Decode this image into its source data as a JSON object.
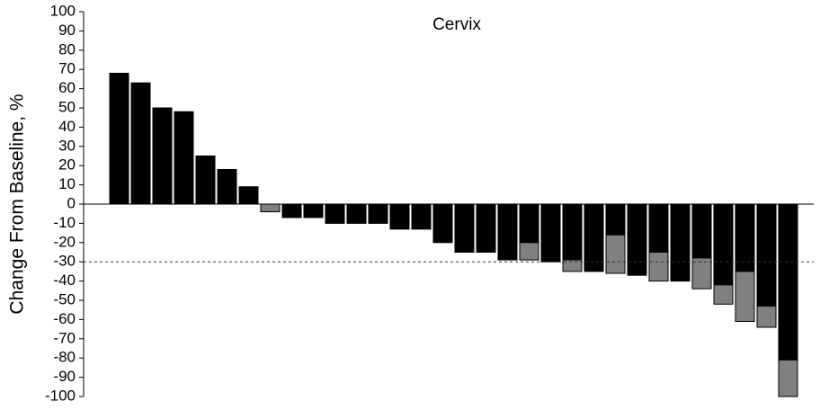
{
  "chart_data": {
    "type": "waterfall",
    "title": "Cervix",
    "y_label": "Change From Baseline, %",
    "series": [
      {
        "color": "#000000",
        "values": [
          68,
          63,
          50,
          48,
          25,
          18,
          9,
          null,
          -7,
          -7,
          -10,
          -10,
          -10,
          -13,
          -13,
          -20,
          -25,
          -25,
          -29,
          -20,
          -30,
          -29,
          -35,
          -16,
          -37,
          -25,
          -40,
          -28,
          -42,
          -35,
          -53,
          -81
        ]
      },
      {
        "color": "#808080",
        "values": [
          null,
          null,
          null,
          null,
          null,
          null,
          null,
          -4,
          null,
          null,
          null,
          null,
          null,
          null,
          null,
          null,
          null,
          null,
          null,
          -9,
          null,
          -6,
          null,
          -20,
          null,
          -15,
          null,
          -16,
          -10,
          -26,
          -11,
          -19
        ]
      }
    ],
    "reference_line": -30,
    "ylim": [
      -100,
      100
    ],
    "yticks": [
      -100,
      -90,
      -80,
      -70,
      -60,
      -50,
      -40,
      -30,
      -20,
      -10,
      0,
      10,
      20,
      30,
      40,
      50,
      60,
      70,
      80,
      90,
      100
    ]
  }
}
